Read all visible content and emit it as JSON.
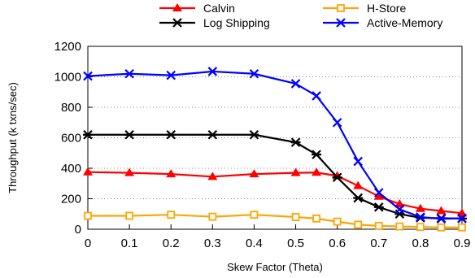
{
  "chart_data": {
    "type": "line",
    "title": "",
    "xlabel": "Skew Factor (Theta)",
    "ylabel": "Throughput (k txns/sec)",
    "xlim": [
      0,
      0.9
    ],
    "ylim": [
      0,
      1200
    ],
    "x_ticks": [
      "0",
      "0.1",
      "0.2",
      "0.3",
      "0.4",
      "0.5",
      "0.6",
      "0.7",
      "0.8",
      "0.9"
    ],
    "y_ticks": [
      "0",
      "200",
      "400",
      "600",
      "800",
      "1000",
      "1200"
    ],
    "grid": "horizontal-dotted",
    "legend_position": "top",
    "x": [
      0,
      0.1,
      0.2,
      0.3,
      0.4,
      0.5,
      0.55,
      0.6,
      0.65,
      0.7,
      0.75,
      0.8,
      0.85,
      0.9
    ],
    "series": [
      {
        "name": "Calvin",
        "color": "#ff0000",
        "marker": "triangle",
        "values": [
          375,
          370,
          362,
          345,
          362,
          370,
          372,
          350,
          285,
          215,
          165,
          135,
          120,
          105
        ]
      },
      {
        "name": "H-Store",
        "color": "#ffa500",
        "marker": "square",
        "values": [
          88,
          88,
          95,
          82,
          95,
          80,
          70,
          50,
          30,
          22,
          18,
          15,
          12,
          12
        ]
      },
      {
        "name": "Log Shipping",
        "color": "#000000",
        "marker": "x-cross",
        "values": [
          620,
          620,
          620,
          620,
          620,
          570,
          490,
          340,
          205,
          145,
          100,
          75,
          72,
          70
        ]
      },
      {
        "name": "Active-Memory",
        "color": "#0000ff",
        "marker": "x",
        "values": [
          1005,
          1020,
          1010,
          1035,
          1020,
          955,
          875,
          700,
          445,
          240,
          130,
          80,
          68,
          72
        ]
      }
    ]
  }
}
